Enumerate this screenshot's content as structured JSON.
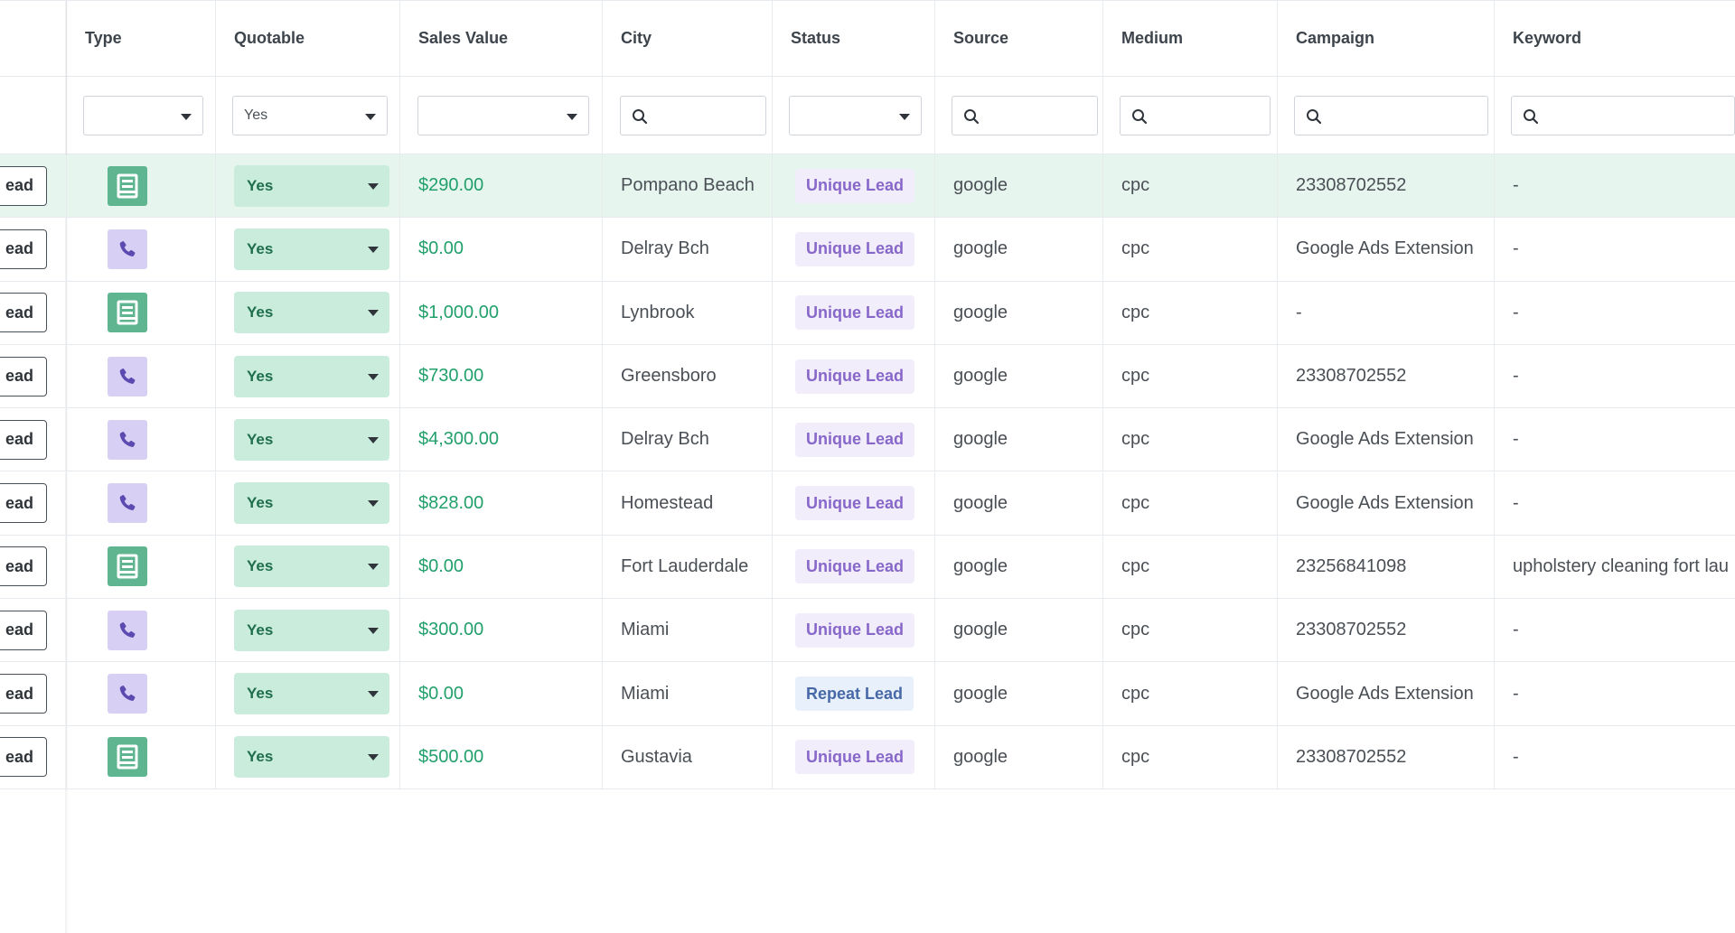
{
  "columns": {
    "type": "Type",
    "quotable": "Quotable",
    "sales_value": "Sales Value",
    "city": "City",
    "status": "Status",
    "source": "Source",
    "medium": "Medium",
    "campaign": "Campaign",
    "keyword": "Keyword"
  },
  "filters": {
    "type": "",
    "quotable": "Yes",
    "sales_value": "",
    "status": ""
  },
  "colors": {
    "highlight_row": "#e6f6ef",
    "money": "#22a06b",
    "quotable_bg": "#c9ecdc",
    "form_icon": "#5fb58f",
    "call_icon": "#d8cff4",
    "unique_badge": "#8767c9",
    "repeat_badge": "#4769a8"
  },
  "rows": [
    {
      "action": "ead",
      "type": "form",
      "quotable": "Yes",
      "sales_value": "$290.00",
      "city": "Pompano Beach",
      "status": "Unique Lead",
      "status_kind": "unique",
      "source": "google",
      "medium": "cpc",
      "campaign": "23308702552",
      "keyword": "-"
    },
    {
      "action": "ead",
      "type": "call",
      "quotable": "Yes",
      "sales_value": "$0.00",
      "city": "Delray Bch",
      "status": "Unique Lead",
      "status_kind": "unique",
      "source": "google",
      "medium": "cpc",
      "campaign": "Google Ads Extension",
      "keyword": "-"
    },
    {
      "action": "ead",
      "type": "form",
      "quotable": "Yes",
      "sales_value": "$1,000.00",
      "city": "Lynbrook",
      "status": "Unique Lead",
      "status_kind": "unique",
      "source": "google",
      "medium": "cpc",
      "campaign": "-",
      "keyword": "-"
    },
    {
      "action": "ead",
      "type": "call",
      "quotable": "Yes",
      "sales_value": "$730.00",
      "city": "Greensboro",
      "status": "Unique Lead",
      "status_kind": "unique",
      "source": "google",
      "medium": "cpc",
      "campaign": "23308702552",
      "keyword": "-"
    },
    {
      "action": "ead",
      "type": "call",
      "quotable": "Yes",
      "sales_value": "$4,300.00",
      "city": "Delray Bch",
      "status": "Unique Lead",
      "status_kind": "unique",
      "source": "google",
      "medium": "cpc",
      "campaign": "Google Ads Extension",
      "keyword": "-"
    },
    {
      "action": "ead",
      "type": "call",
      "quotable": "Yes",
      "sales_value": "$828.00",
      "city": "Homestead",
      "status": "Unique Lead",
      "status_kind": "unique",
      "source": "google",
      "medium": "cpc",
      "campaign": "Google Ads Extension",
      "keyword": "-"
    },
    {
      "action": "ead",
      "type": "form",
      "quotable": "Yes",
      "sales_value": "$0.00",
      "city": "Fort Lauderdale",
      "status": "Unique Lead",
      "status_kind": "unique",
      "source": "google",
      "medium": "cpc",
      "campaign": "23256841098",
      "keyword": "upholstery cleaning fort lau"
    },
    {
      "action": "ead",
      "type": "call",
      "quotable": "Yes",
      "sales_value": "$300.00",
      "city": "Miami",
      "status": "Unique Lead",
      "status_kind": "unique",
      "source": "google",
      "medium": "cpc",
      "campaign": "23308702552",
      "keyword": "-"
    },
    {
      "action": "ead",
      "type": "call",
      "quotable": "Yes",
      "sales_value": "$0.00",
      "city": "Miami",
      "status": "Repeat Lead",
      "status_kind": "repeat",
      "source": "google",
      "medium": "cpc",
      "campaign": "Google Ads Extension",
      "keyword": "-"
    },
    {
      "action": "ead",
      "type": "form",
      "quotable": "Yes",
      "sales_value": "$500.00",
      "city": "Gustavia",
      "status": "Unique Lead",
      "status_kind": "unique",
      "source": "google",
      "medium": "cpc",
      "campaign": "23308702552",
      "keyword": "-"
    }
  ]
}
